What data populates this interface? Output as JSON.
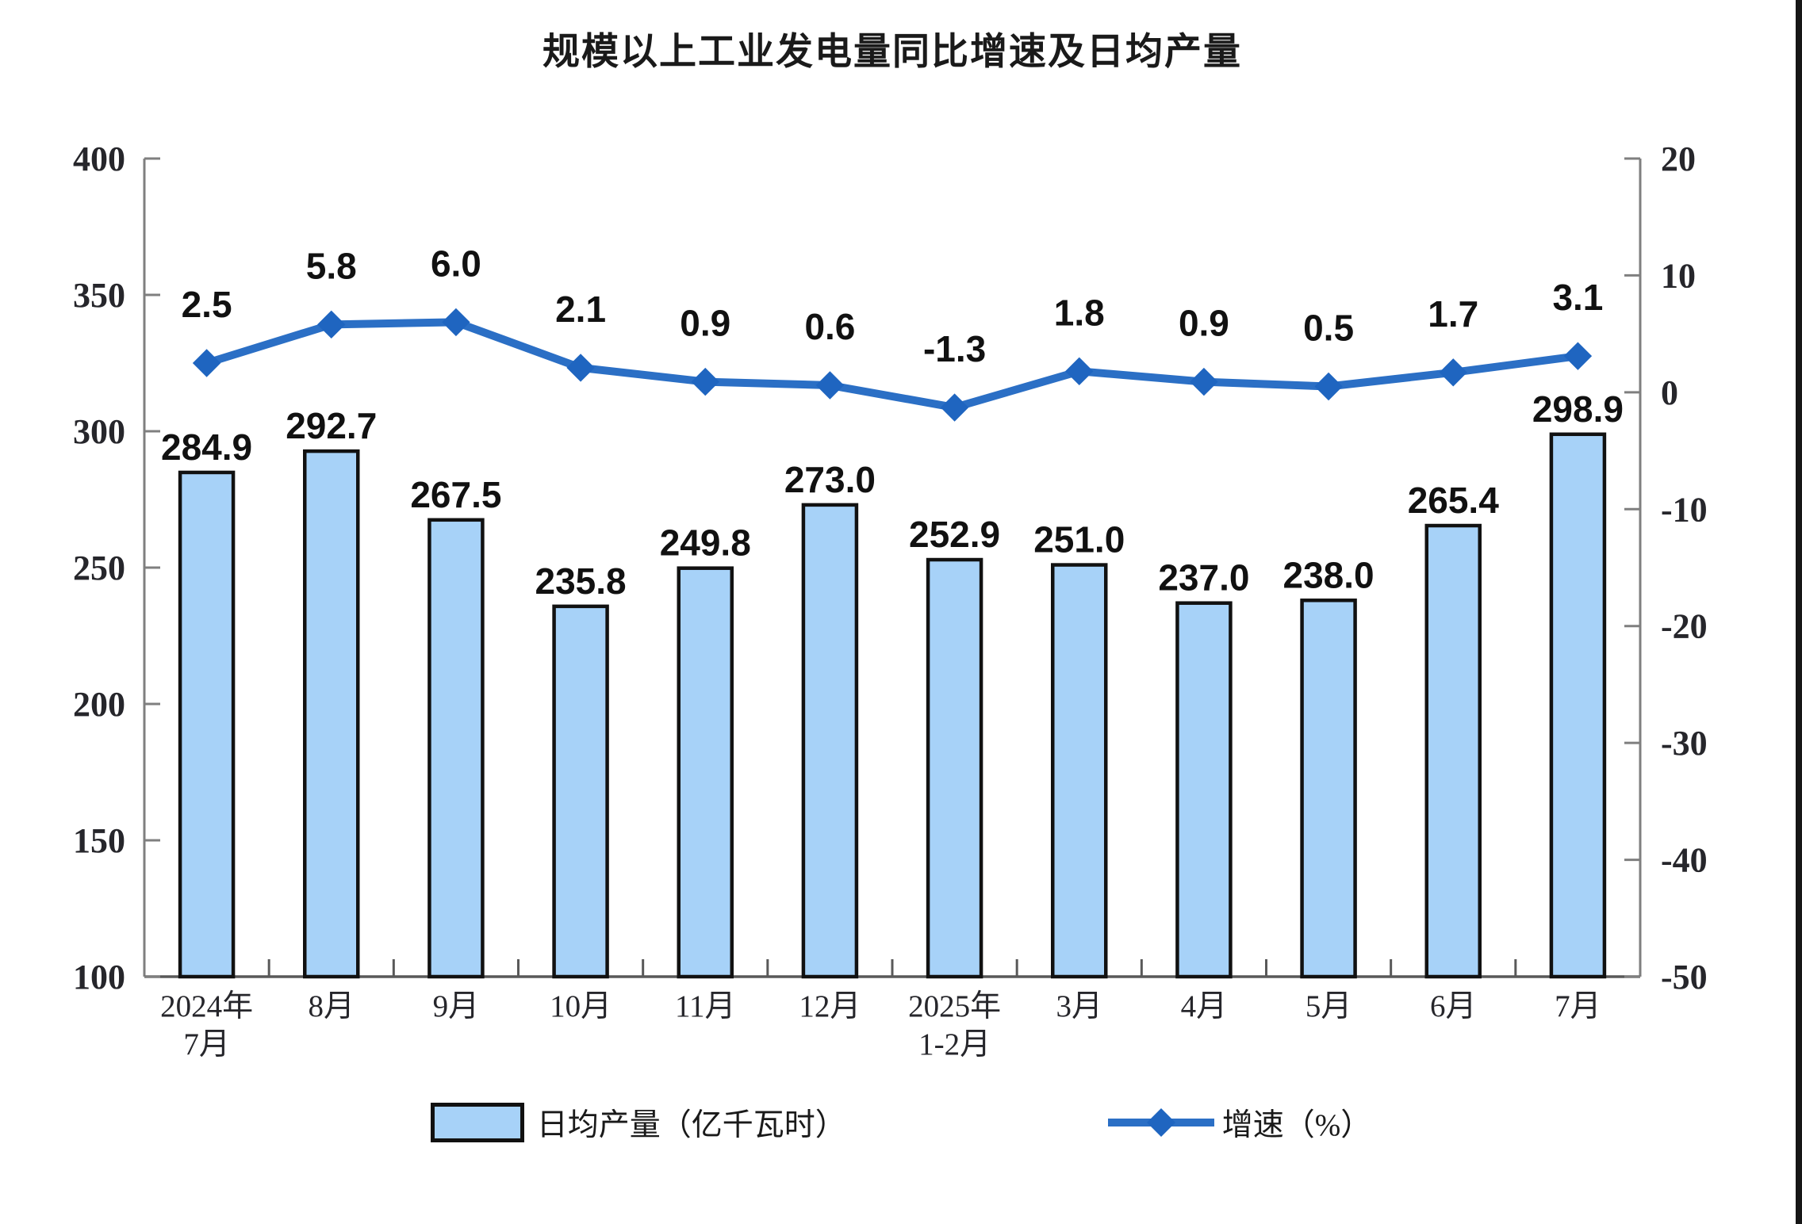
{
  "window": {
    "background": "#ffffff",
    "right_edge_line_color": "#161616"
  },
  "chart_data": {
    "type": "combo",
    "title": "规模以上工业发电量同比增速及日均产量",
    "categories": [
      "2024年\n7月",
      "8月",
      "9月",
      "10月",
      "11月",
      "12月",
      "2025年\n1-2月",
      "3月",
      "4月",
      "5月",
      "6月",
      "7月"
    ],
    "series": [
      {
        "name": "日均产量（亿千瓦时）",
        "type": "bar",
        "axis": "left",
        "unit": "亿千瓦时",
        "values": [
          284.9,
          292.7,
          267.5,
          235.8,
          249.8,
          273.0,
          252.9,
          251.0,
          237.0,
          238.0,
          265.4,
          298.9
        ],
        "fill_color": "#A7D2F8",
        "border_color": "#111111"
      },
      {
        "name": "增速（%）",
        "type": "line",
        "axis": "right",
        "unit": "%",
        "values": [
          2.5,
          5.8,
          6.0,
          2.1,
          0.9,
          0.6,
          -1.3,
          1.8,
          0.9,
          0.5,
          1.7,
          3.1
        ],
        "line_color": "#2B6FC5",
        "marker_color": "#1F65C0",
        "marker": "diamond"
      }
    ],
    "left_axis": {
      "min": 100,
      "max": 400,
      "step": 50,
      "tick_labels_top_to_bottom": [
        "400",
        "350",
        "300",
        "250",
        "200",
        "150",
        "100"
      ]
    },
    "right_axis": {
      "min": -50,
      "max": 20,
      "step": 10,
      "tick_labels_top_to_bottom": [
        "20",
        "10",
        "0",
        "-10",
        "-20",
        "-30",
        "-40",
        "-50"
      ]
    },
    "grid": false,
    "legend_position": "bottom",
    "data_label_decimals": 1,
    "axis_line_color": "#7f7f7f",
    "baseline_color": "#595959",
    "data_label_color": "#111111",
    "tick_label_color": "#26262b"
  }
}
